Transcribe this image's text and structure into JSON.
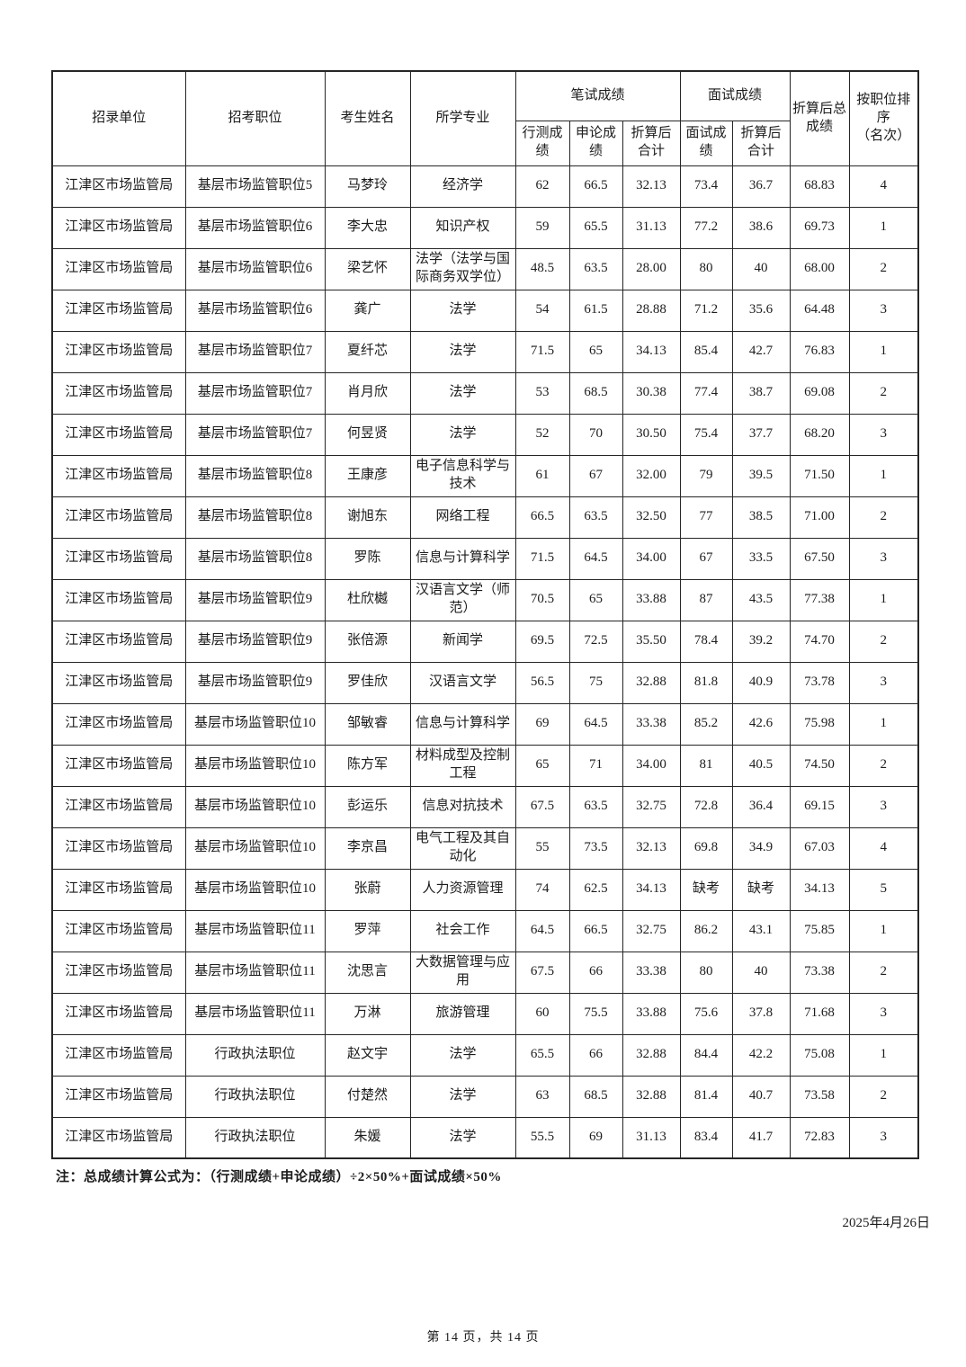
{
  "table": {
    "headers": {
      "unit": "招录单位",
      "position": "招考职位",
      "candidate": "考生姓名",
      "major": "所学专业",
      "written_group": "笔试成绩",
      "interview_group": "面试成绩",
      "xingce": "行测成绩",
      "shenlun": "申论成绩",
      "written_converted": "折算后合计",
      "interview_score": "面试成绩",
      "interview_converted": "折算后合计",
      "total_line1": "折算后总",
      "total_line2": "成绩",
      "rank_line1": "按职位排序",
      "rank_line2": "（名次）"
    },
    "rows": [
      [
        "江津区市场监管局",
        "基层市场监管职位5",
        "马梦玲",
        "经济学",
        "62",
        "66.5",
        "32.13",
        "73.4",
        "36.7",
        "68.83",
        "4"
      ],
      [
        "江津区市场监管局",
        "基层市场监管职位6",
        "李大忠",
        "知识产权",
        "59",
        "65.5",
        "31.13",
        "77.2",
        "38.6",
        "69.73",
        "1"
      ],
      [
        "江津区市场监管局",
        "基层市场监管职位6",
        "梁艺怀",
        "法学（法学与国际商务双学位）",
        "48.5",
        "63.5",
        "28.00",
        "80",
        "40",
        "68.00",
        "2"
      ],
      [
        "江津区市场监管局",
        "基层市场监管职位6",
        "龚广",
        "法学",
        "54",
        "61.5",
        "28.88",
        "71.2",
        "35.6",
        "64.48",
        "3"
      ],
      [
        "江津区市场监管局",
        "基层市场监管职位7",
        "夏纤芯",
        "法学",
        "71.5",
        "65",
        "34.13",
        "85.4",
        "42.7",
        "76.83",
        "1"
      ],
      [
        "江津区市场监管局",
        "基层市场监管职位7",
        "肖月欣",
        "法学",
        "53",
        "68.5",
        "30.38",
        "77.4",
        "38.7",
        "69.08",
        "2"
      ],
      [
        "江津区市场监管局",
        "基层市场监管职位7",
        "何昱贤",
        "法学",
        "52",
        "70",
        "30.50",
        "75.4",
        "37.7",
        "68.20",
        "3"
      ],
      [
        "江津区市场监管局",
        "基层市场监管职位8",
        "王康彦",
        "电子信息科学与技术",
        "61",
        "67",
        "32.00",
        "79",
        "39.5",
        "71.50",
        "1"
      ],
      [
        "江津区市场监管局",
        "基层市场监管职位8",
        "谢旭东",
        "网络工程",
        "66.5",
        "63.5",
        "32.50",
        "77",
        "38.5",
        "71.00",
        "2"
      ],
      [
        "江津区市场监管局",
        "基层市场监管职位8",
        "罗陈",
        "信息与计算科学",
        "71.5",
        "64.5",
        "34.00",
        "67",
        "33.5",
        "67.50",
        "3"
      ],
      [
        "江津区市场监管局",
        "基层市场监管职位9",
        "杜欣樾",
        "汉语言文学（师范）",
        "70.5",
        "65",
        "33.88",
        "87",
        "43.5",
        "77.38",
        "1"
      ],
      [
        "江津区市场监管局",
        "基层市场监管职位9",
        "张倍源",
        "新闻学",
        "69.5",
        "72.5",
        "35.50",
        "78.4",
        "39.2",
        "74.70",
        "2"
      ],
      [
        "江津区市场监管局",
        "基层市场监管职位9",
        "罗佳欣",
        "汉语言文学",
        "56.5",
        "75",
        "32.88",
        "81.8",
        "40.9",
        "73.78",
        "3"
      ],
      [
        "江津区市场监管局",
        "基层市场监管职位10",
        "邹敏睿",
        "信息与计算科学",
        "69",
        "64.5",
        "33.38",
        "85.2",
        "42.6",
        "75.98",
        "1"
      ],
      [
        "江津区市场监管局",
        "基层市场监管职位10",
        "陈方军",
        "材料成型及控制工程",
        "65",
        "71",
        "34.00",
        "81",
        "40.5",
        "74.50",
        "2"
      ],
      [
        "江津区市场监管局",
        "基层市场监管职位10",
        "彭运乐",
        "信息对抗技术",
        "67.5",
        "63.5",
        "32.75",
        "72.8",
        "36.4",
        "69.15",
        "3"
      ],
      [
        "江津区市场监管局",
        "基层市场监管职位10",
        "李京昌",
        "电气工程及其自动化",
        "55",
        "73.5",
        "32.13",
        "69.8",
        "34.9",
        "67.03",
        "4"
      ],
      [
        "江津区市场监管局",
        "基层市场监管职位10",
        "张蔚",
        "人力资源管理",
        "74",
        "62.5",
        "34.13",
        "缺考",
        "缺考",
        "34.13",
        "5"
      ],
      [
        "江津区市场监管局",
        "基层市场监管职位11",
        "罗萍",
        "社会工作",
        "64.5",
        "66.5",
        "32.75",
        "86.2",
        "43.1",
        "75.85",
        "1"
      ],
      [
        "江津区市场监管局",
        "基层市场监管职位11",
        "沈思言",
        "大数据管理与应用",
        "67.5",
        "66",
        "33.38",
        "80",
        "40",
        "73.38",
        "2"
      ],
      [
        "江津区市场监管局",
        "基层市场监管职位11",
        "万淋",
        "旅游管理",
        "60",
        "75.5",
        "33.88",
        "75.6",
        "37.8",
        "71.68",
        "3"
      ],
      [
        "江津区市场监管局",
        "行政执法职位",
        "赵文宇",
        "法学",
        "65.5",
        "66",
        "32.88",
        "84.4",
        "42.2",
        "75.08",
        "1"
      ],
      [
        "江津区市场监管局",
        "行政执法职位",
        "付楚然",
        "法学",
        "63",
        "68.5",
        "32.88",
        "81.4",
        "40.7",
        "73.58",
        "2"
      ],
      [
        "江津区市场监管局",
        "行政执法职位",
        "朱媛",
        "法学",
        "55.5",
        "69",
        "31.13",
        "83.4",
        "41.7",
        "72.83",
        "3"
      ]
    ]
  },
  "footer": {
    "note": "注：总成绩计算公式为：（行测成绩+申论成绩）÷2×50%+面试成绩×50%",
    "date": "2025年4月26日",
    "page_indicator": "第 14 页，共 14 页"
  }
}
